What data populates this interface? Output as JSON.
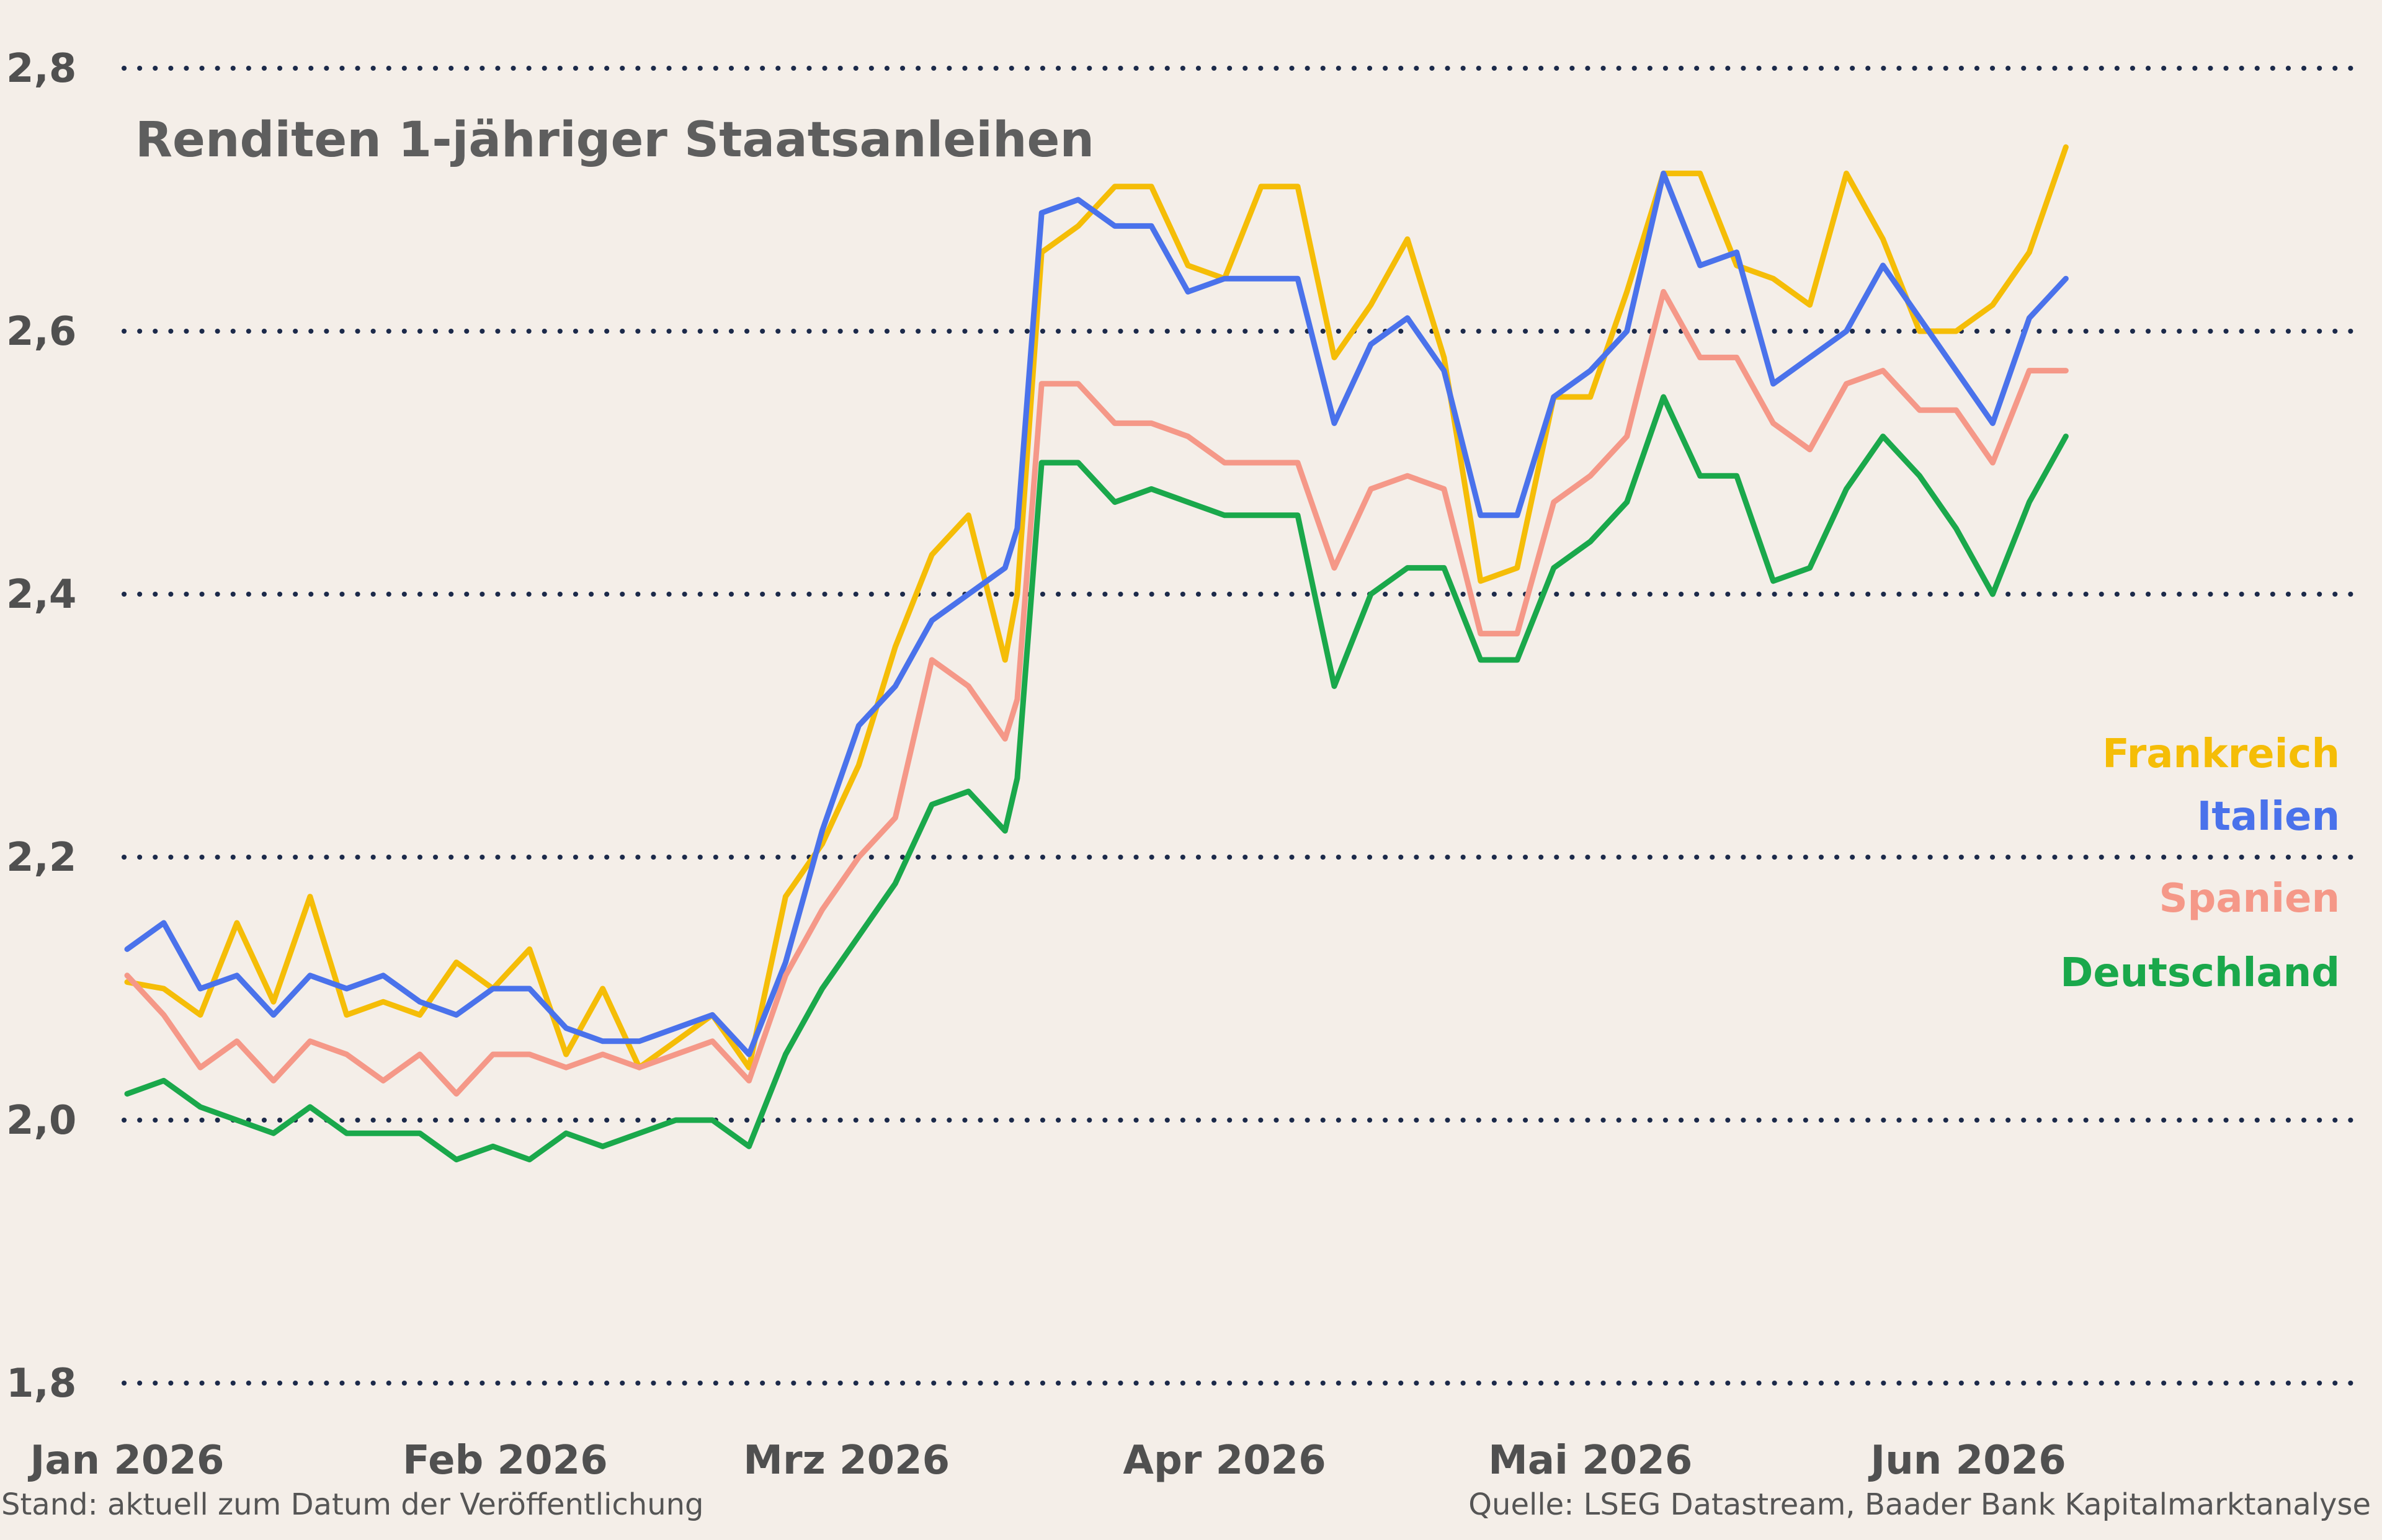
{
  "chart_data": {
    "type": "line",
    "title": "Renditen 1-jähriger Staatsanleihen",
    "xlabel": "",
    "ylabel": "",
    "ylim": [
      1.8,
      2.8
    ],
    "y_ticks": [
      "1,8",
      "2,0",
      "2,2",
      "2,4",
      "2,6",
      "2,8"
    ],
    "y_tick_values": [
      1.8,
      2.0,
      2.2,
      2.4,
      2.6,
      2.8
    ],
    "x_ticks": [
      "Jan 2026",
      "Feb 2026",
      "Mrz 2026",
      "Apr 2026",
      "Mai 2026",
      "Jun 2026"
    ],
    "x_tick_values": [
      0,
      31,
      59,
      90,
      120,
      151
    ],
    "xlim": [
      0,
      160
    ],
    "grid": true,
    "legend": "right",
    "x": [
      0,
      3,
      6,
      9,
      12,
      15,
      18,
      21,
      24,
      27,
      30,
      33,
      36,
      39,
      42,
      45,
      48,
      51,
      54,
      57,
      60,
      63,
      66,
      69,
      72,
      73,
      75,
      78,
      81,
      84,
      87,
      90,
      93,
      96,
      99,
      102,
      105,
      108,
      111,
      114,
      117,
      120,
      123,
      126,
      129,
      132,
      135,
      138,
      141,
      144,
      147,
      150,
      153,
      156,
      159
    ],
    "series": [
      {
        "name": "Frankreich",
        "color": "#f5bd07",
        "values": [
          2.105,
          2.1,
          2.08,
          2.15,
          2.09,
          2.17,
          2.08,
          2.09,
          2.08,
          2.12,
          2.1,
          2.13,
          2.05,
          2.1,
          2.04,
          2.06,
          2.08,
          2.04,
          2.17,
          2.21,
          2.27,
          2.36,
          2.43,
          2.46,
          2.35,
          2.4,
          2.66,
          2.68,
          2.71,
          2.71,
          2.65,
          2.64,
          2.71,
          2.71,
          2.58,
          2.62,
          2.67,
          2.58,
          2.41,
          2.42,
          2.55,
          2.55,
          2.63,
          2.72,
          2.72,
          2.65,
          2.64,
          2.62,
          2.72,
          2.67,
          2.6,
          2.6,
          2.62,
          2.66,
          2.74
        ]
      },
      {
        "name": "Italien",
        "color": "#4a72eb",
        "values": [
          2.13,
          2.15,
          2.1,
          2.11,
          2.08,
          2.11,
          2.1,
          2.11,
          2.09,
          2.08,
          2.1,
          2.1,
          2.07,
          2.06,
          2.06,
          2.07,
          2.08,
          2.05,
          2.12,
          2.22,
          2.3,
          2.33,
          2.38,
          2.4,
          2.42,
          2.45,
          2.69,
          2.7,
          2.68,
          2.68,
          2.63,
          2.64,
          2.64,
          2.64,
          2.53,
          2.59,
          2.61,
          2.57,
          2.46,
          2.46,
          2.55,
          2.57,
          2.6,
          2.72,
          2.65,
          2.66,
          2.56,
          2.58,
          2.6,
          2.65,
          2.61,
          2.57,
          2.53,
          2.61,
          2.64
        ]
      },
      {
        "name": "Spanien",
        "color": "#f59888",
        "values": [
          2.11,
          2.08,
          2.04,
          2.06,
          2.03,
          2.06,
          2.05,
          2.03,
          2.05,
          2.02,
          2.05,
          2.05,
          2.04,
          2.05,
          2.04,
          2.05,
          2.06,
          2.03,
          2.11,
          2.16,
          2.2,
          2.23,
          2.35,
          2.33,
          2.29,
          2.32,
          2.56,
          2.56,
          2.53,
          2.53,
          2.52,
          2.5,
          2.5,
          2.5,
          2.42,
          2.48,
          2.49,
          2.48,
          2.37,
          2.37,
          2.47,
          2.49,
          2.52,
          2.63,
          2.58,
          2.58,
          2.53,
          2.51,
          2.56,
          2.57,
          2.54,
          2.54,
          2.5,
          2.57,
          2.57
        ]
      },
      {
        "name": "Deutschland",
        "color": "#1aa84b",
        "values": [
          2.02,
          2.03,
          2.01,
          2.0,
          1.99,
          2.01,
          1.99,
          1.99,
          1.99,
          1.97,
          1.98,
          1.97,
          1.99,
          1.98,
          1.99,
          2.0,
          2.0,
          1.98,
          2.05,
          2.1,
          2.14,
          2.18,
          2.24,
          2.25,
          2.22,
          2.26,
          2.5,
          2.5,
          2.47,
          2.48,
          2.47,
          2.46,
          2.46,
          2.46,
          2.33,
          2.4,
          2.42,
          2.42,
          2.35,
          2.35,
          2.42,
          2.44,
          2.47,
          2.55,
          2.49,
          2.49,
          2.41,
          2.42,
          2.48,
          2.52,
          2.49,
          2.45,
          2.4,
          2.47,
          2.52
        ]
      }
    ],
    "source": "Quelle: LSEG Datastream, Baader Bank Kapitalmarktanalyse",
    "note": "Stand: aktuell zum Datum der Veröffentlichung"
  }
}
